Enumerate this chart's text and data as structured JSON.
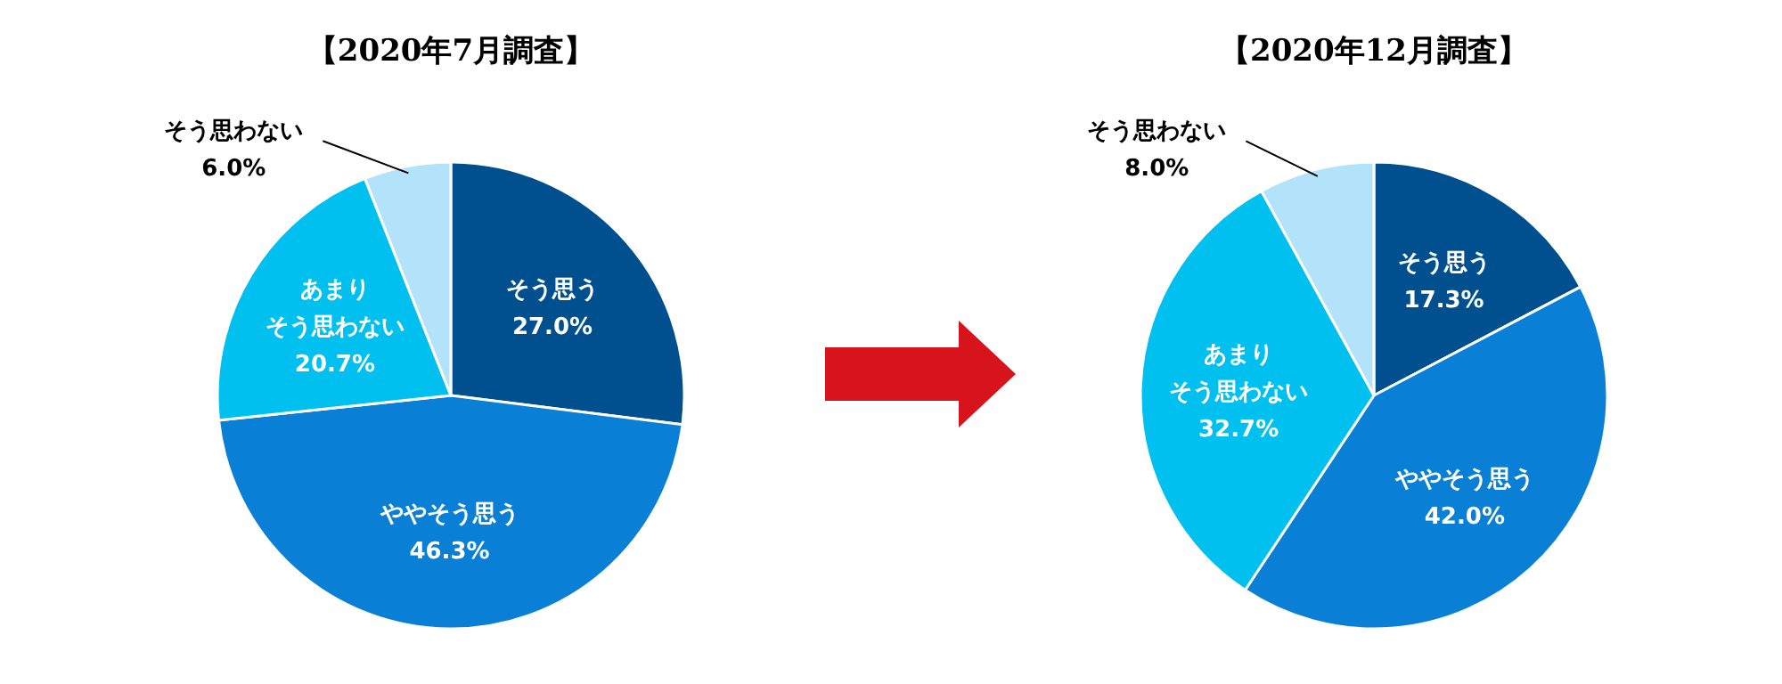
{
  "chart_data": [
    {
      "type": "pie",
      "title": "【2020年7月調査】",
      "categories": [
        "そう思う",
        "ややそう思う",
        "あまりそう思わない",
        "そう思わない"
      ],
      "values": [
        27.0,
        46.3,
        20.7,
        6.0
      ],
      "value_labels": [
        "27.0%",
        "46.3%",
        "20.7%",
        "6.0%"
      ],
      "colors": [
        "#00508f",
        "#0a7fd6",
        "#00c0f0",
        "#b3e3fa"
      ]
    },
    {
      "type": "pie",
      "title": "【2020年12月調査】",
      "categories": [
        "そう思う",
        "ややそう思う",
        "あまりそう思わない",
        "そう思わない"
      ],
      "values": [
        17.3,
        42.0,
        32.7,
        8.0
      ],
      "value_labels": [
        "17.3%",
        "42.0%",
        "32.7%",
        "8.0%"
      ],
      "colors": [
        "#00508f",
        "#0a7fd6",
        "#00c0f0",
        "#b3e3fa"
      ]
    }
  ]
}
